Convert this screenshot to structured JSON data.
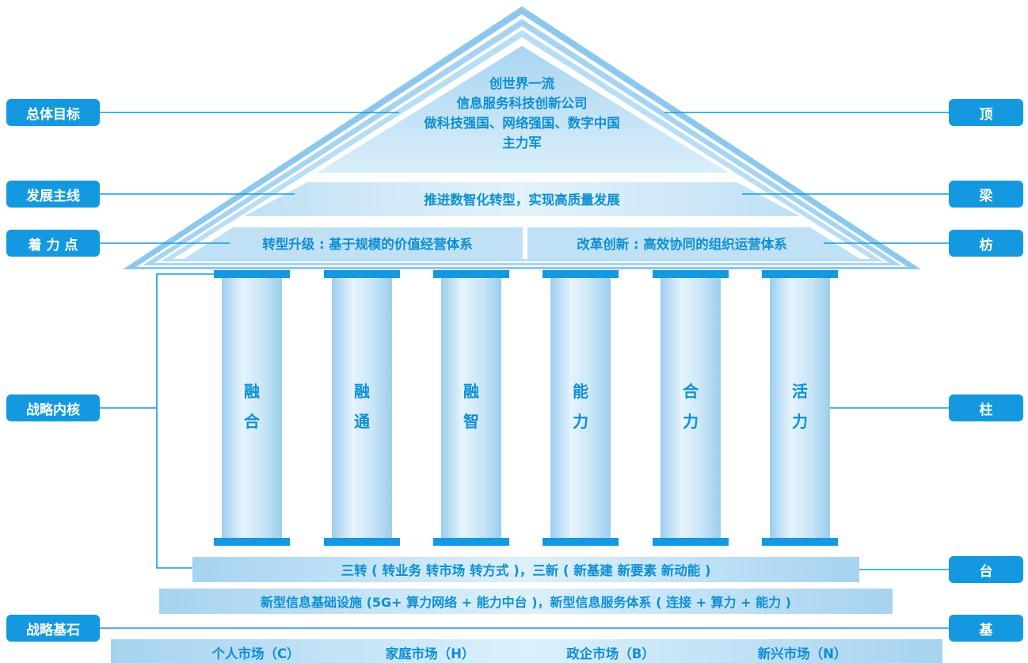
{
  "roof": {
    "goal_lines": [
      "创世界一流",
      "信息服务科技创新公司",
      "做科技强国、网络强国、数字中国",
      "主力军"
    ],
    "main_line": "推进数智化转型，实现高质量发展",
    "focus_left": "转型升级 : 基于规模的价值经营体系",
    "focus_right": "改革创新 : 高效协同的组织运营体系"
  },
  "columns": [
    {
      "chars": [
        "融",
        "合"
      ]
    },
    {
      "chars": [
        "融",
        "通"
      ]
    },
    {
      "chars": [
        "融",
        "智"
      ]
    },
    {
      "chars": [
        "能",
        "力"
      ]
    },
    {
      "chars": [
        "合",
        "力"
      ]
    },
    {
      "chars": [
        "活",
        "力"
      ]
    }
  ],
  "platform": {
    "line1": "三转 ( 转业务 转市场 转方式 )，三新 ( 新基建 新要素 新动能 )",
    "line2": "新型信息基础设施 (5G+ 算力网络 + 能力中台 )，新型信息服务体系 ( 连接 + 算力 + 能力 )"
  },
  "markets": [
    "个人市场（C）",
    "家庭市场（H）",
    "政企市场（B）",
    "新兴市场（N）"
  ],
  "left_labels": {
    "goal": "总体目标",
    "main_line": "发展主线",
    "focus": "着 力 点",
    "core": "战略内核",
    "cornerstone": "战略基石"
  },
  "right_labels": {
    "top": "顶",
    "beam": "梁",
    "purlin": "枋",
    "pillar": "柱",
    "platform": "台",
    "base": "基"
  },
  "colors": {
    "accent": "#1499e0",
    "text": "#0d8fd6",
    "line": "#1499e0",
    "light": "#cfe8f7"
  }
}
